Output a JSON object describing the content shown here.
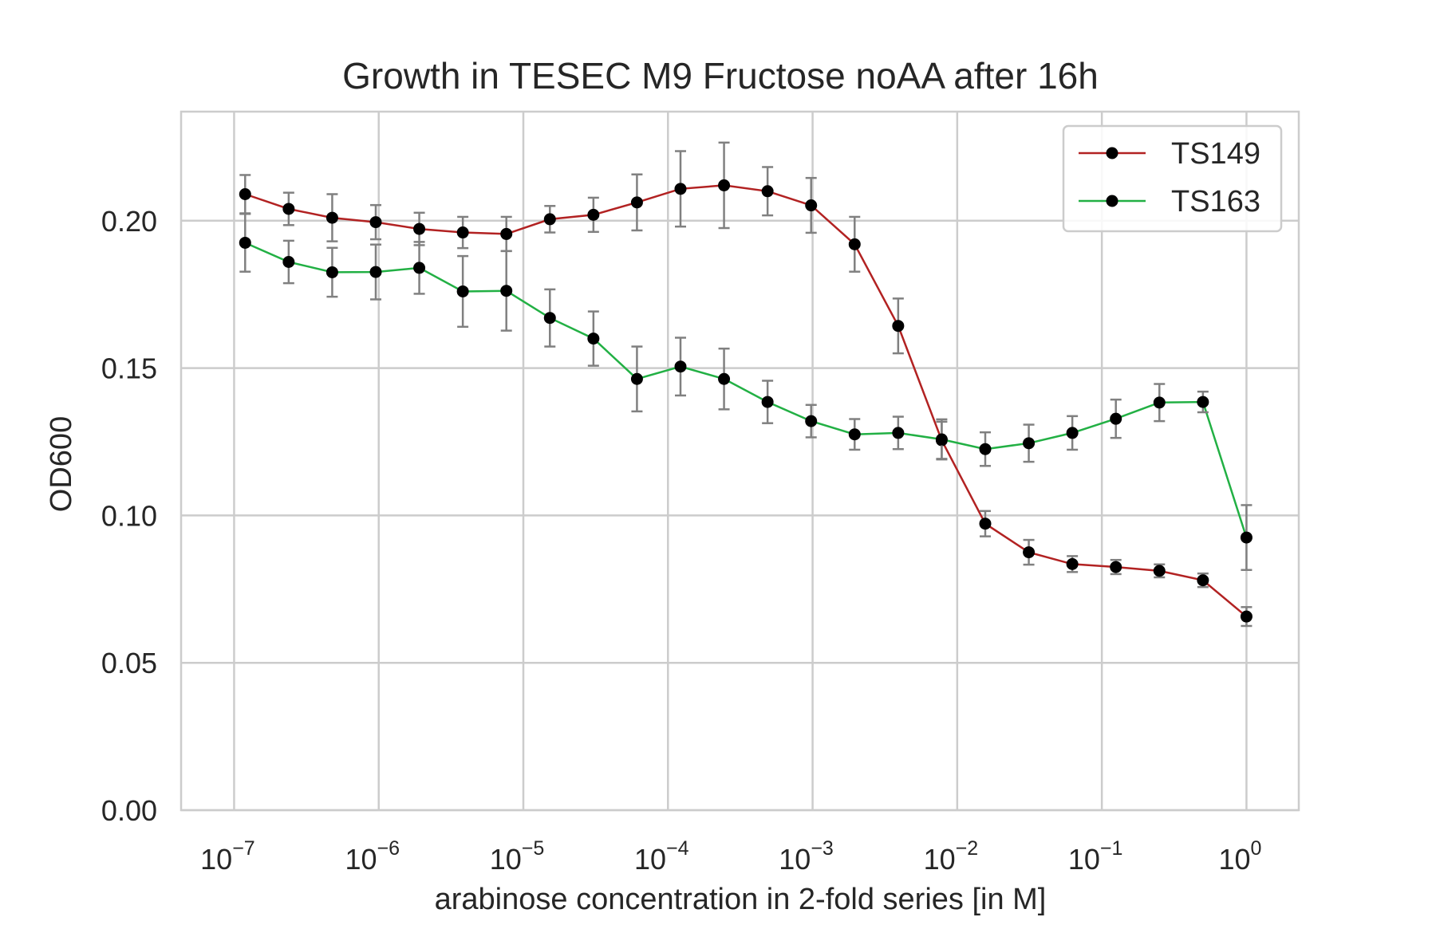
{
  "chart_data": {
    "type": "line",
    "title": "Growth in TESEC M9 Fructose noAA after 16h",
    "xlabel": "arabinose concentration in 2-fold series [in M]",
    "ylabel": "OD600",
    "xscale": "log",
    "xlim": [
      4.3e-08,
      2.3
    ],
    "ylim": [
      0.0,
      0.237
    ],
    "grid": true,
    "legend_position": "top-right",
    "x_ticks": [
      {
        "base": "10",
        "exp": "−7",
        "value": 1e-07
      },
      {
        "base": "10",
        "exp": "−6",
        "value": 1e-06
      },
      {
        "base": "10",
        "exp": "−5",
        "value": 1e-05
      },
      {
        "base": "10",
        "exp": "−4",
        "value": 0.0001
      },
      {
        "base": "10",
        "exp": "−3",
        "value": 0.001
      },
      {
        "base": "10",
        "exp": "−2",
        "value": 0.01
      },
      {
        "base": "10",
        "exp": "−1",
        "value": 0.1
      },
      {
        "base": "10",
        "exp": "0",
        "value": 1
      }
    ],
    "y_ticks": [
      {
        "label": "0.00",
        "value": 0.0
      },
      {
        "label": "0.05",
        "value": 0.05
      },
      {
        "label": "0.10",
        "value": 0.1
      },
      {
        "label": "0.15",
        "value": 0.15
      },
      {
        "label": "0.20",
        "value": 0.2
      }
    ],
    "x": [
      1.1921e-07,
      2.3842e-07,
      4.7684e-07,
      9.5367e-07,
      1.9073e-06,
      3.8147e-06,
      7.6294e-06,
      1.5259e-05,
      3.0518e-05,
      6.1035e-05,
      0.00012207,
      0.00024414,
      0.00048828,
      0.00097656,
      0.0019531,
      0.0039063,
      0.0078125,
      0.015625,
      0.03125,
      0.0625,
      0.125,
      0.25,
      0.5,
      1.0
    ],
    "series": [
      {
        "name": "TS149",
        "color": "#b22222",
        "values": [
          0.209,
          0.204,
          0.201,
          0.1995,
          0.1972,
          0.196,
          0.1955,
          0.2005,
          0.202,
          0.2062,
          0.2108,
          0.212,
          0.21,
          0.2052,
          0.192,
          0.1643,
          0.1255,
          0.0972,
          0.0875,
          0.0835,
          0.0825,
          0.0812,
          0.078,
          0.0657
        ],
        "errors": [
          0.0065,
          0.0055,
          0.008,
          0.0058,
          0.0055,
          0.0053,
          0.0058,
          0.0045,
          0.0058,
          0.0095,
          0.0128,
          0.0145,
          0.0082,
          0.0093,
          0.0093,
          0.0093,
          0.0063,
          0.0043,
          0.0042,
          0.0027,
          0.0024,
          0.0022,
          0.0023,
          0.0032
        ]
      },
      {
        "name": "TS163",
        "color": "#22b044",
        "values": [
          0.1925,
          0.186,
          0.1825,
          0.1826,
          0.184,
          0.176,
          0.1762,
          0.167,
          0.16,
          0.1463,
          0.1505,
          0.1463,
          0.1385,
          0.132,
          0.1275,
          0.128,
          0.1258,
          0.1225,
          0.1245,
          0.128,
          0.1328,
          0.1383,
          0.1385,
          0.0925
        ],
        "errors": [
          0.0098,
          0.0072,
          0.0083,
          0.0093,
          0.0088,
          0.012,
          0.0135,
          0.0097,
          0.0092,
          0.011,
          0.0098,
          0.0103,
          0.0072,
          0.0055,
          0.0052,
          0.0055,
          0.0068,
          0.0057,
          0.0063,
          0.0057,
          0.0065,
          0.0063,
          0.0035,
          0.011
        ]
      }
    ]
  }
}
